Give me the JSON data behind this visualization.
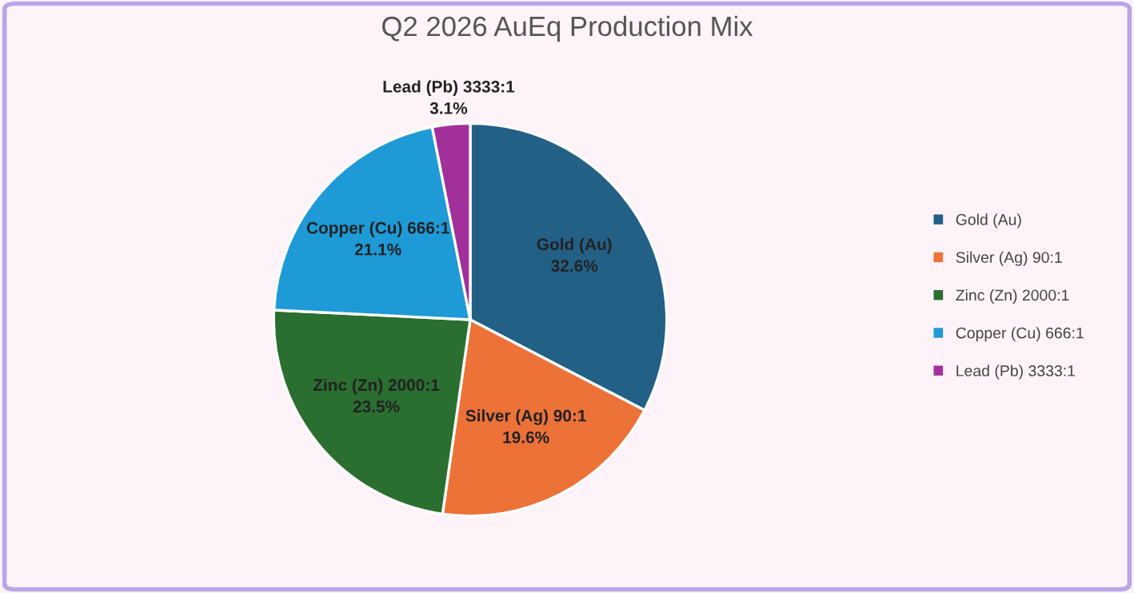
{
  "chart_data": {
    "type": "pie",
    "title": "Q2 2026 AuEq Production Mix",
    "categories": [
      "Gold (Au)",
      "Silver (Ag) 90:1",
      "Zinc (Zn) 2000:1",
      "Copper (Cu) 666:1",
      "Lead (Pb) 3333:1"
    ],
    "values": [
      32.6,
      19.6,
      23.5,
      21.1,
      3.1
    ],
    "value_labels": [
      "32.6%",
      "19.6%",
      "23.5%",
      "21.1%",
      "3.1%"
    ],
    "colors": [
      "#236086",
      "#ed7238",
      "#2a6e30",
      "#1e9ad6",
      "#a2309a"
    ],
    "legend": "right"
  }
}
